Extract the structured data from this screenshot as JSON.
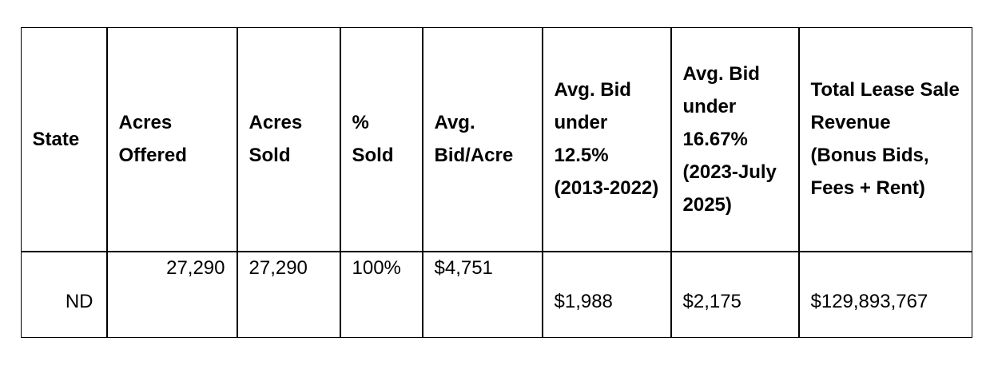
{
  "table": {
    "header": [
      "State",
      "Acres Offered",
      "Acres Sold",
      "% Sold",
      "Avg. Bid/Acre",
      "Avg. Bid under 12.5% (2013-2022)",
      "Avg. Bid under 16.67% (2023-July 2025)",
      "Total Lease Sale Revenue (Bonus Bids, Fees + Rent)"
    ],
    "rows": [
      [
        "ND",
        "27,290",
        "27,290",
        "100%",
        "$4,751",
        "$1,988",
        "$2,175",
        "$129,893,767"
      ]
    ]
  }
}
